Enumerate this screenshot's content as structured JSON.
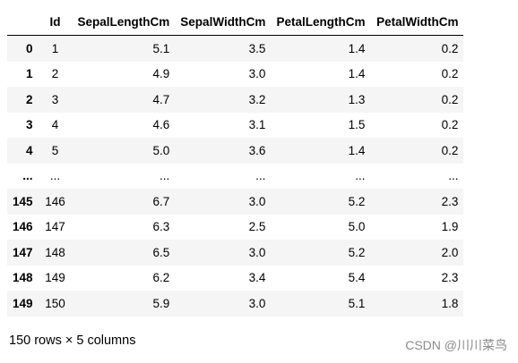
{
  "table": {
    "columns": [
      "",
      "Id",
      "SepalLengthCm",
      "SepalWidthCm",
      "PetalLengthCm",
      "PetalWidthCm"
    ],
    "rows": [
      [
        "0",
        "1",
        "5.1",
        "3.5",
        "1.4",
        "0.2"
      ],
      [
        "1",
        "2",
        "4.9",
        "3.0",
        "1.4",
        "0.2"
      ],
      [
        "2",
        "3",
        "4.7",
        "3.2",
        "1.3",
        "0.2"
      ],
      [
        "3",
        "4",
        "4.6",
        "3.1",
        "1.5",
        "0.2"
      ],
      [
        "4",
        "5",
        "5.0",
        "3.6",
        "1.4",
        "0.2"
      ],
      [
        "...",
        "...",
        "...",
        "...",
        "...",
        "..."
      ],
      [
        "145",
        "146",
        "6.7",
        "3.0",
        "5.2",
        "2.3"
      ],
      [
        "146",
        "147",
        "6.3",
        "2.5",
        "5.0",
        "1.9"
      ],
      [
        "147",
        "148",
        "6.5",
        "3.0",
        "5.2",
        "2.0"
      ],
      [
        "148",
        "149",
        "6.2",
        "3.4",
        "5.4",
        "2.3"
      ],
      [
        "149",
        "150",
        "5.9",
        "3.0",
        "5.1",
        "1.8"
      ]
    ]
  },
  "shape_text": "150 rows × 5 columns",
  "watermark": "CSDN @川川菜鸟"
}
